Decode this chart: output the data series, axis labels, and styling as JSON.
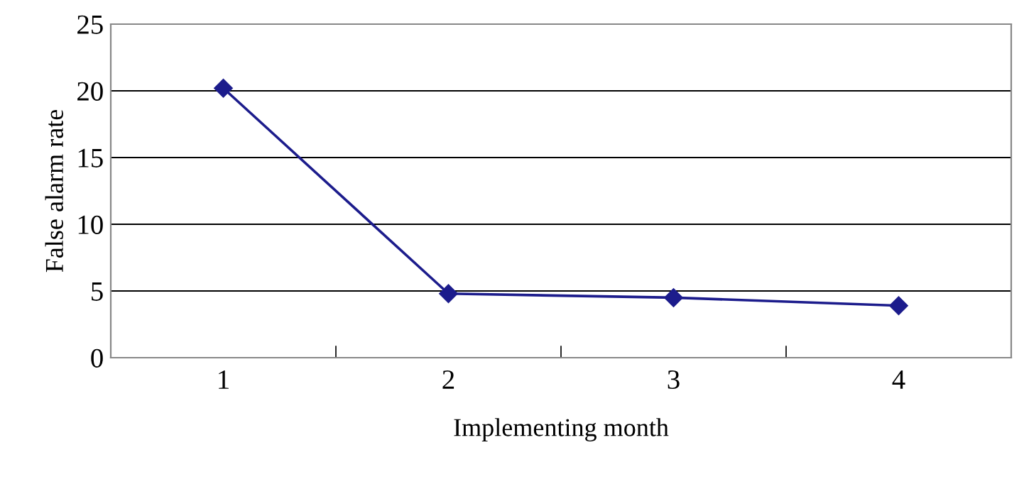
{
  "chart_data": {
    "type": "line",
    "xlabel": "Implementing month",
    "ylabel": "False alarm rate",
    "categories": [
      "1",
      "2",
      "3",
      "4"
    ],
    "series": [
      {
        "color": "#1c1c8c",
        "values": [
          20.2,
          4.8,
          4.5,
          3.9
        ]
      }
    ],
    "ylim": [
      0,
      25
    ],
    "yticks": [
      0,
      5,
      10,
      15,
      20,
      25
    ],
    "grid": "y",
    "marker": "diamond",
    "line_style": "solid",
    "legend": false
  }
}
